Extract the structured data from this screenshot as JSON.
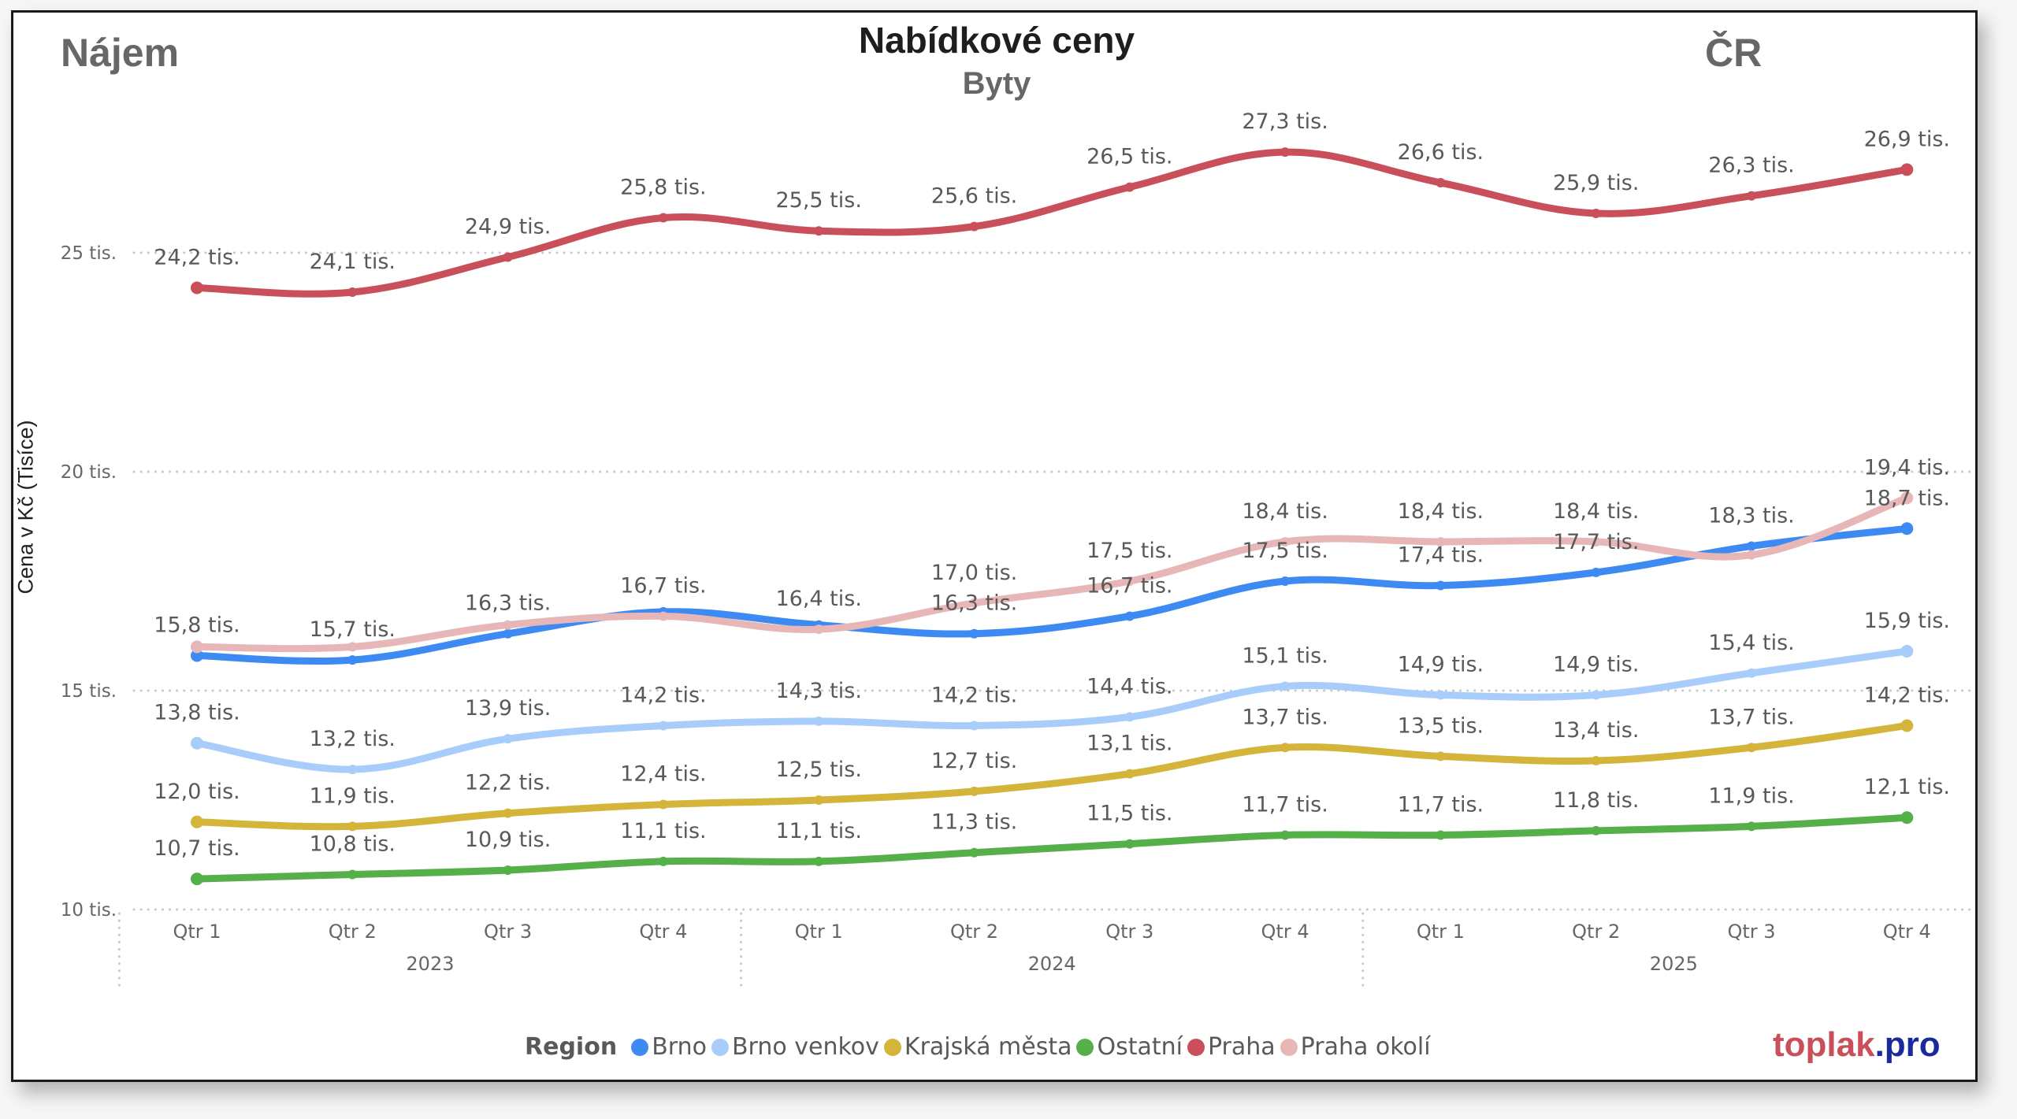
{
  "header": {
    "left_label": "Nájem",
    "title": "Nabídkové ceny",
    "subtitle": "Byty",
    "right_label": "ČR"
  },
  "logo": {
    "part1": "toplak",
    "part2": ".pro",
    "color1": "#C9505A",
    "color2": "#1A2A9A"
  },
  "chart_data": {
    "type": "line",
    "title": "Nabídkové ceny",
    "subtitle": "Byty",
    "ylabel": "Cena v Kč (Tisíce)",
    "xlabel": "",
    "ylim": [
      10,
      27.6
    ],
    "yticks": [
      10,
      15,
      20,
      25
    ],
    "ytick_labels": [
      "10 tis.",
      "15 tis.",
      "20 tis.",
      "25 tis."
    ],
    "grid": true,
    "x_quarters": [
      "Qtr 1",
      "Qtr 2",
      "Qtr 3",
      "Qtr 4",
      "Qtr 1",
      "Qtr 2",
      "Qtr 3",
      "Qtr 4",
      "Qtr 1",
      "Qtr 2",
      "Qtr 3",
      "Qtr 4"
    ],
    "x_years": [
      "2023",
      "2024",
      "2025"
    ],
    "legend_title": "Region",
    "legend_position": "bottom",
    "unit_suffix": " tis.",
    "series": [
      {
        "name": "Brno",
        "color": "#3D8BF2",
        "values": [
          15.8,
          15.7,
          16.3,
          16.8,
          16.5,
          16.3,
          16.7,
          17.5,
          17.4,
          17.7,
          18.3,
          18.7
        ],
        "labels": [
          "15,8",
          "15,7",
          "16,3",
          null,
          null,
          "16,3",
          "16,7",
          "17,5",
          "17,4",
          "17,7",
          "18,3",
          "18,7"
        ]
      },
      {
        "name": "Brno venkov",
        "color": "#A8CDFA",
        "values": [
          13.8,
          13.2,
          13.9,
          14.2,
          14.3,
          14.2,
          14.4,
          15.1,
          14.9,
          14.9,
          15.4,
          15.9
        ],
        "labels": [
          "13,8",
          "13,2",
          "13,9",
          "14,2",
          "14,3",
          "14,2",
          "14,4",
          "15,1",
          "14,9",
          "14,9",
          "15,4",
          "15,9"
        ]
      },
      {
        "name": "Krajská města",
        "color": "#D4B43A",
        "values": [
          12.0,
          11.9,
          12.2,
          12.4,
          12.5,
          12.7,
          13.1,
          13.7,
          13.5,
          13.4,
          13.7,
          14.2
        ],
        "labels": [
          "12,0",
          "11,9",
          "12,2",
          "12,4",
          "12,5",
          "12,7",
          "13,1",
          "13,7",
          "13,5",
          "13,4",
          "13,7",
          "14,2"
        ]
      },
      {
        "name": "Ostatní",
        "color": "#55B04A",
        "values": [
          10.7,
          10.8,
          10.9,
          11.1,
          11.1,
          11.3,
          11.5,
          11.7,
          11.7,
          11.8,
          11.9,
          12.1
        ],
        "labels": [
          "10,7",
          "10,8",
          "10,9",
          "11,1",
          "11,1",
          "11,3",
          "11,5",
          "11,7",
          "11,7",
          "11,8",
          "11,9",
          "12,1"
        ]
      },
      {
        "name": "Praha",
        "color": "#C9505A",
        "values": [
          24.2,
          24.1,
          24.9,
          25.8,
          25.5,
          25.6,
          26.5,
          27.3,
          26.6,
          25.9,
          26.3,
          26.9
        ],
        "labels": [
          "24,2",
          "24,1",
          "24,9",
          "25,8",
          "25,5",
          "25,6",
          "26,5",
          "27,3",
          "26,6",
          "25,9",
          "26,3",
          "26,9"
        ]
      },
      {
        "name": "Praha okolí",
        "color": "#E7B7B8",
        "values": [
          16.0,
          16.0,
          16.5,
          16.7,
          16.4,
          17.0,
          17.5,
          18.4,
          18.4,
          18.4,
          18.1,
          19.4
        ],
        "labels": [
          null,
          null,
          null,
          "16,7",
          "16,4",
          "17,0",
          "17,5",
          "18,4",
          "18,4",
          "18,4",
          null,
          "19,4"
        ]
      }
    ]
  }
}
